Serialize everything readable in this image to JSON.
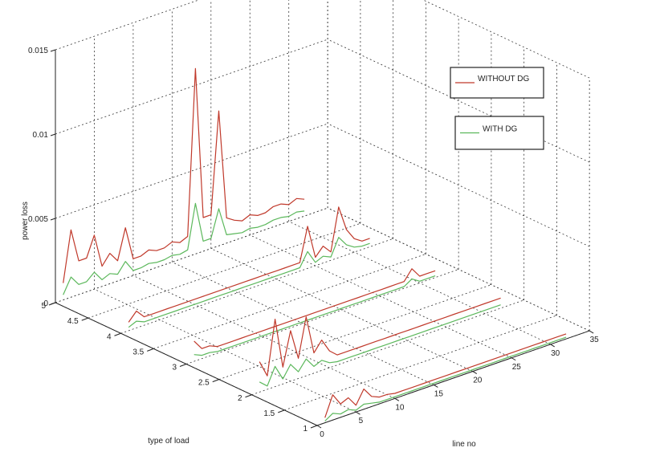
{
  "chart_data": {
    "type": "line",
    "projection": "3d",
    "xlabel": "line no",
    "ylabel": "type of load",
    "zlabel": "power loss",
    "xlim": [
      0,
      35
    ],
    "ylim": [
      1,
      5
    ],
    "zlim": [
      0,
      0.015
    ],
    "xticks": [
      "0",
      "5",
      "10",
      "15",
      "20",
      "25",
      "30",
      "35"
    ],
    "yticks": [
      "1",
      "1.5",
      "2",
      "2.5",
      "3",
      "3.5",
      "4",
      "4.5",
      "5"
    ],
    "zticks": [
      "0",
      "0.005",
      "0.01",
      "0.015"
    ],
    "grid": true,
    "legend_position": "top-right",
    "x": [
      1,
      2,
      3,
      4,
      5,
      6,
      7,
      8,
      9,
      10,
      11,
      12,
      13,
      14,
      15,
      16,
      17,
      18,
      19,
      20,
      21,
      22,
      23,
      24,
      25,
      26,
      27,
      28,
      29,
      30,
      31,
      32
    ],
    "series": [
      {
        "name": "WITHOUT DG",
        "color": "#c0392b",
        "lines": [
          {
            "type_of_load": 1,
            "values": [
              0.0003,
              0.0015,
              0.0008,
              0.001,
              0.0004,
              0.0012,
              0.0006,
              0.0004,
              0.0004,
              0.0003,
              0.0003,
              0.0003,
              0.0003,
              0.0003,
              0.0003,
              0.0003,
              0.0003,
              0.0003,
              0.0003,
              0.0003,
              0.0003,
              0.0003,
              0.0003,
              0.0003,
              0.0003,
              0.0003,
              0.0003,
              0.0003,
              0.0003,
              0.0003,
              0.0003,
              0.0003
            ]
          },
          {
            "type_of_load": 2,
            "values": [
              0.0018,
              0.0008,
              0.004,
              0.001,
              0.003,
              0.0012,
              0.0035,
              0.0012,
              0.0018,
              0.001,
              0.0006,
              0.0006,
              0.0006,
              0.0006,
              0.0006,
              0.0006,
              0.0006,
              0.0006,
              0.0006,
              0.0006,
              0.0006,
              0.0006,
              0.0006,
              0.0006,
              0.0006,
              0.0006,
              0.0006,
              0.0006,
              0.0006,
              0.0006,
              0.0006,
              0.0006
            ]
          },
          {
            "type_of_load": 3,
            "values": [
              0.0012,
              0.0006,
              0.0006,
              0.0004,
              0.0004,
              0.0004,
              0.0004,
              0.0004,
              0.0004,
              0.0004,
              0.0004,
              0.0004,
              0.0004,
              0.0004,
              0.0004,
              0.0004,
              0.0004,
              0.0004,
              0.0004,
              0.0004,
              0.0004,
              0.0004,
              0.0004,
              0.0004,
              0.0004,
              0.0004,
              0.0004,
              0.0004,
              0.001,
              0.0004,
              0.0004,
              0.0004
            ]
          },
          {
            "type_of_load": 4,
            "values": [
              0.0005,
              0.001,
              0.0005,
              0.0005,
              0.0005,
              0.0005,
              0.0005,
              0.0005,
              0.0005,
              0.0005,
              0.0005,
              0.0005,
              0.0005,
              0.0005,
              0.0005,
              0.0005,
              0.0005,
              0.0005,
              0.0005,
              0.0005,
              0.0005,
              0.0005,
              0.0005,
              0.0025,
              0.0005,
              0.001,
              0.0005,
              0.003,
              0.0015,
              0.0008,
              0.0005,
              0.0005
            ]
          },
          {
            "type_of_load": 5,
            "values": [
              0.001,
              0.004,
              0.002,
              0.002,
              0.0032,
              0.0012,
              0.0018,
              0.0012,
              0.003,
              0.001,
              0.001,
              0.0012,
              0.001,
              0.001,
              0.0012,
              0.001,
              0.0012,
              0.011,
              0.002,
              0.002,
              0.008,
              0.0015,
              0.0012,
              0.001,
              0.0012,
              0.001,
              0.001,
              0.0012,
              0.0012,
              0.001,
              0.0012,
              0.001
            ]
          }
        ]
      },
      {
        "name": "WITH DG",
        "color": "#5cb85c",
        "lines": [
          {
            "type_of_load": 1,
            "values": [
              0.0001,
              0.0004,
              0.0002,
              0.0003,
              0.0001,
              0.0003,
              0.0002,
              0.0001,
              0.0001,
              0.0001,
              0.0001,
              0.0001,
              0.0001,
              0.0001,
              0.0001,
              0.0001,
              0.0001,
              0.0001,
              0.0001,
              0.0001,
              0.0001,
              0.0001,
              0.0001,
              0.0001,
              0.0001,
              0.0001,
              0.0001,
              0.0001,
              0.0001,
              0.0001,
              0.0001,
              0.0001
            ]
          },
          {
            "type_of_load": 2,
            "values": [
              0.0006,
              0.0002,
              0.0012,
              0.0003,
              0.001,
              0.0004,
              0.001,
              0.0004,
              0.0006,
              0.0003,
              0.0002,
              0.0002,
              0.0002,
              0.0002,
              0.0002,
              0.0002,
              0.0002,
              0.0002,
              0.0002,
              0.0002,
              0.0002,
              0.0002,
              0.0002,
              0.0002,
              0.0002,
              0.0002,
              0.0002,
              0.0002,
              0.0002,
              0.0002,
              0.0002,
              0.0002
            ]
          },
          {
            "type_of_load": 3,
            "values": [
              0.0004,
              0.0002,
              0.0002,
              0.0001,
              0.0001,
              0.0001,
              0.0001,
              0.0001,
              0.0001,
              0.0001,
              0.0001,
              0.0001,
              0.0001,
              0.0001,
              0.0001,
              0.0001,
              0.0001,
              0.0001,
              0.0001,
              0.0001,
              0.0001,
              0.0001,
              0.0001,
              0.0001,
              0.0001,
              0.0001,
              0.0001,
              0.0001,
              0.0004,
              0.0001,
              0.0001,
              0.0001
            ]
          },
          {
            "type_of_load": 4,
            "values": [
              0.0002,
              0.0004,
              0.0002,
              0.0002,
              0.0002,
              0.0002,
              0.0002,
              0.0002,
              0.0002,
              0.0002,
              0.0002,
              0.0002,
              0.0002,
              0.0002,
              0.0002,
              0.0002,
              0.0002,
              0.0002,
              0.0002,
              0.0002,
              0.0002,
              0.0002,
              0.0002,
              0.001,
              0.0002,
              0.0004,
              0.0002,
              0.0012,
              0.0006,
              0.0003,
              0.0002,
              0.0002
            ]
          },
          {
            "type_of_load": 5,
            "values": [
              0.0003,
              0.0012,
              0.0006,
              0.0006,
              0.001,
              0.0004,
              0.0006,
              0.0004,
              0.001,
              0.0003,
              0.0003,
              0.0004,
              0.0003,
              0.0003,
              0.0004,
              0.0003,
              0.0004,
              0.003,
              0.0006,
              0.0006,
              0.0022,
              0.0005,
              0.0004,
              0.0003,
              0.0004,
              0.0003,
              0.0003,
              0.0004,
              0.0004,
              0.0003,
              0.0004,
              0.0003
            ]
          }
        ]
      }
    ]
  }
}
